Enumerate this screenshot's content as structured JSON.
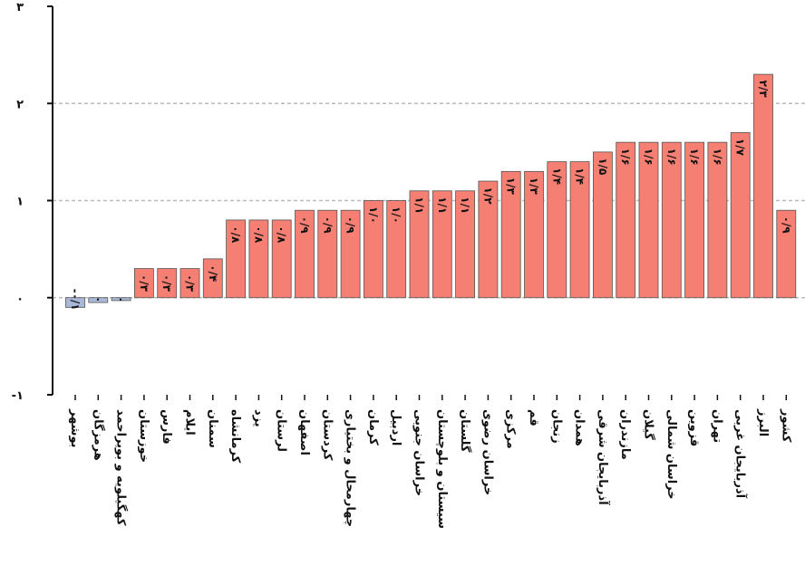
{
  "chart_data": {
    "type": "bar",
    "ylim": [
      -1,
      3
    ],
    "yticks": [
      -1,
      0,
      1,
      2,
      3
    ],
    "ytick_labels": [
      "-۱",
      "۰",
      "۱",
      "۲",
      "۳"
    ],
    "grid": "horizontal-dashed",
    "colors": {
      "positive": "#f47f72",
      "negative": "#aab8d8",
      "edge": "#555555",
      "grid": "#bbbbbb"
    },
    "categories": [
      "بوشهر",
      "هرمزگان",
      "کهگیلویه و بویراحمد",
      "خوزستان",
      "فارس",
      "ایلام",
      "سمنان",
      "کرمانشاه",
      "یزد",
      "لرستان",
      "اصفهان",
      "کردستان",
      "چهارمحال و بختیاری",
      "کرمان",
      "اردبیل",
      "خراسان جنوبی",
      "سیستان و بلوچستان",
      "گلستان",
      "خراسان رضوی",
      "مرکزی",
      "قم",
      "زنجان",
      "همدان",
      "آذربایجان شرقی",
      "مازندران",
      "گیلان",
      "خراسان شمالی",
      "قزوین",
      "تهران",
      "آذربایجان غربی",
      "البرز",
      "کشور"
    ],
    "values": [
      -0.1,
      -0.05,
      -0.03,
      0.3,
      0.3,
      0.3,
      0.4,
      0.8,
      0.8,
      0.8,
      0.9,
      0.9,
      0.9,
      1.0,
      1.0,
      1.1,
      1.1,
      1.1,
      1.2,
      1.3,
      1.3,
      1.4,
      1.4,
      1.5,
      1.6,
      1.6,
      1.6,
      1.6,
      1.6,
      1.7,
      2.3,
      0.9
    ],
    "data_labels": [
      "-۰/۱",
      "۰",
      "۰",
      "۰/۳",
      "۰/۳",
      "۰/۳",
      "۰/۴",
      "۰/۸",
      "۰/۸",
      "۰/۸",
      "۰/۹",
      "۰/۹",
      "۰/۹",
      "۱/۰",
      "۱/۰",
      "۱/۱",
      "۱/۱",
      "۱/۱",
      "۱/۲",
      "۱/۳",
      "۱/۳",
      "۱/۴",
      "۱/۴",
      "۱/۵",
      "۱/۶",
      "۱/۶",
      "۱/۶",
      "۱/۶",
      "۱/۶",
      "۱/۷",
      "۲/۳",
      "۰/۹"
    ]
  }
}
